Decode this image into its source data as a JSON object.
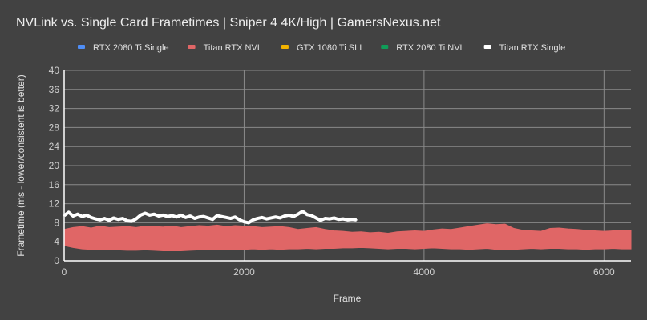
{
  "chart_data": {
    "type": "area",
    "title": "NVLink vs. Single Card Frametimes | Sniper 4 4K/High | GamersNexus.net",
    "xlabel": "Frame",
    "ylabel": "Frametime (ms - lower/consistent is better)",
    "xlim": [
      0,
      6300
    ],
    "ylim": [
      0,
      40
    ],
    "xticks": [
      "0",
      "2000",
      "4000",
      "6000"
    ],
    "xtick_values": [
      0,
      2000,
      4000,
      6000
    ],
    "yticks": [
      "0",
      "4",
      "8",
      "12",
      "16",
      "20",
      "24",
      "28",
      "32",
      "36",
      "40"
    ],
    "grid": true,
    "legend_position": "top",
    "legend": [
      {
        "name": "RTX 2080 Ti Single",
        "color": "#4f8ef7"
      },
      {
        "name": "Titan RTX NVL",
        "color": "#e06666"
      },
      {
        "name": "GTX 1080 Ti SLI",
        "color": "#f4b400"
      },
      {
        "name": "RTX 2080 Ti NVL",
        "color": "#0f9d58"
      },
      {
        "name": "Titan RTX Single",
        "color": "#ffffff"
      }
    ],
    "series": [
      {
        "name": "Titan RTX NVL",
        "color": "#e06666",
        "bin_frames": 100,
        "x_start": 0,
        "low": [
          3.2,
          2.8,
          2.5,
          2.4,
          2.3,
          2.4,
          2.3,
          2.2,
          2.2,
          2.3,
          2.2,
          2.1,
          2.1,
          2.1,
          2.2,
          2.3,
          2.3,
          2.4,
          2.3,
          2.3,
          2.4,
          2.5,
          2.4,
          2.5,
          2.4,
          2.5,
          2.5,
          2.6,
          2.5,
          2.6,
          2.6,
          2.7,
          2.7,
          2.8,
          2.7,
          2.6,
          2.5,
          2.6,
          2.6,
          2.5,
          2.6,
          2.7,
          2.6,
          2.5,
          2.5,
          2.4,
          2.5,
          2.6,
          2.4,
          2.3,
          2.4,
          2.5,
          2.6,
          2.5,
          2.6,
          2.6,
          2.5,
          2.5,
          2.4,
          2.5,
          2.5,
          2.6,
          2.5,
          2.5
        ],
        "high": [
          6.6,
          7.0,
          7.2,
          6.9,
          7.3,
          7.0,
          7.1,
          7.2,
          7.0,
          7.3,
          7.2,
          7.1,
          7.3,
          7.0,
          7.2,
          7.4,
          7.3,
          7.5,
          7.2,
          7.4,
          7.3,
          7.2,
          7.0,
          7.1,
          7.2,
          7.0,
          6.6,
          6.8,
          7.0,
          6.6,
          6.3,
          6.2,
          6.0,
          6.1,
          5.9,
          6.0,
          5.8,
          6.1,
          6.2,
          6.3,
          6.2,
          6.5,
          6.7,
          6.6,
          6.9,
          7.2,
          7.5,
          7.8,
          7.6,
          7.7,
          6.8,
          6.4,
          6.3,
          6.2,
          6.8,
          6.9,
          6.7,
          6.6,
          6.4,
          6.3,
          6.2,
          6.3,
          6.4,
          6.3
        ]
      },
      {
        "name": "Titan RTX Single",
        "color": "#ffffff",
        "step_frames": 50,
        "x_start": 0,
        "values": [
          9.5,
          10.2,
          9.4,
          9.8,
          9.3,
          9.6,
          9.1,
          8.8,
          8.6,
          8.9,
          8.5,
          9.0,
          8.7,
          8.9,
          8.4,
          8.3,
          8.8,
          9.6,
          10.0,
          9.6,
          9.8,
          9.4,
          9.6,
          9.3,
          9.5,
          9.2,
          9.6,
          9.1,
          9.4,
          8.9,
          9.2,
          9.3,
          9.0,
          8.7,
          9.5,
          9.3,
          9.1,
          8.9,
          9.2,
          8.6,
          8.2,
          8.0,
          8.6,
          8.9,
          9.1,
          8.8,
          9.0,
          9.2,
          9.0,
          9.4,
          9.6,
          9.3,
          9.8,
          10.4,
          9.7,
          9.5,
          9.0,
          8.5,
          8.9,
          8.8,
          9.0,
          8.7,
          8.8,
          8.6,
          8.7,
          8.6
        ]
      }
    ]
  }
}
